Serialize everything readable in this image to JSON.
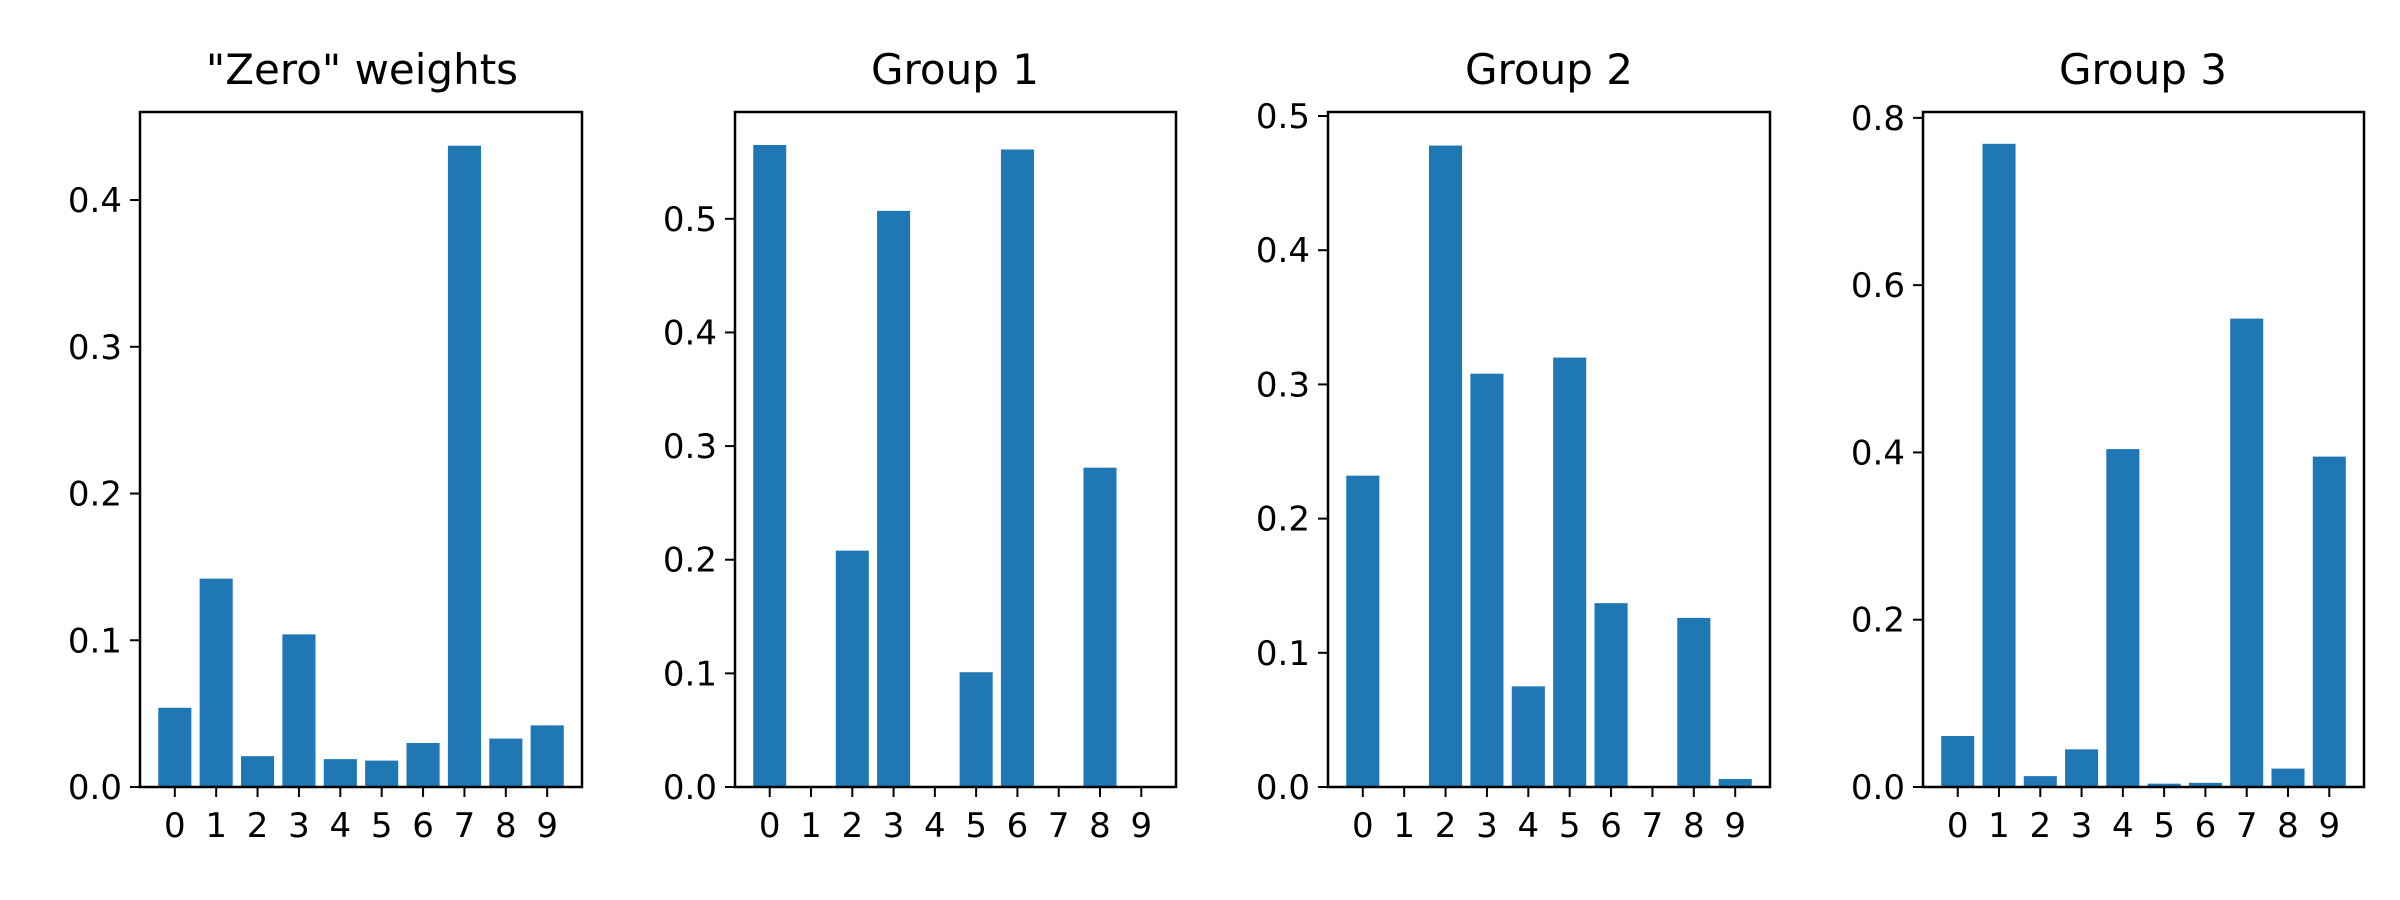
{
  "chart_data": [
    {
      "type": "bar",
      "title": "\"Zero\" weights",
      "categories": [
        "0",
        "1",
        "2",
        "3",
        "4",
        "5",
        "6",
        "7",
        "8",
        "9"
      ],
      "values": [
        0.054,
        0.142,
        0.021,
        0.104,
        0.019,
        0.018,
        0.03,
        0.437,
        0.033,
        0.042
      ],
      "ylim": [
        0,
        0.46
      ],
      "yticks": [
        0.0,
        0.1,
        0.2,
        0.3,
        0.4
      ],
      "ytick_labels": [
        "0.0",
        "0.1",
        "0.2",
        "0.3",
        "0.4"
      ],
      "xlabel": "",
      "ylabel": "",
      "color": "#1f77b4",
      "grid": false
    },
    {
      "type": "bar",
      "title": "Group 1",
      "categories": [
        "0",
        "1",
        "2",
        "3",
        "4",
        "5",
        "6",
        "7",
        "8",
        "9"
      ],
      "values": [
        0.565,
        0.0,
        0.208,
        0.507,
        0.0,
        0.101,
        0.561,
        0.0,
        0.281,
        0.0
      ],
      "ylim": [
        0,
        0.594
      ],
      "yticks": [
        0.0,
        0.1,
        0.2,
        0.3,
        0.4,
        0.5
      ],
      "ytick_labels": [
        "0.0",
        "0.1",
        "0.2",
        "0.3",
        "0.4",
        "0.5"
      ],
      "xlabel": "",
      "ylabel": "",
      "color": "#1f77b4",
      "grid": false
    },
    {
      "type": "bar",
      "title": "Group 2",
      "categories": [
        "0",
        "1",
        "2",
        "3",
        "4",
        "5",
        "6",
        "7",
        "8",
        "9"
      ],
      "values": [
        0.232,
        0.0,
        0.478,
        0.308,
        0.075,
        0.32,
        0.137,
        0.0,
        0.126,
        0.006
      ],
      "ylim": [
        0,
        0.503
      ],
      "yticks": [
        0.0,
        0.1,
        0.2,
        0.3,
        0.4,
        0.5
      ],
      "ytick_labels": [
        "0.0",
        "0.1",
        "0.2",
        "0.3",
        "0.4",
        "0.5"
      ],
      "xlabel": "",
      "ylabel": "",
      "color": "#1f77b4",
      "grid": false
    },
    {
      "type": "bar",
      "title": "Group 3",
      "categories": [
        "0",
        "1",
        "2",
        "3",
        "4",
        "5",
        "6",
        "7",
        "8",
        "9"
      ],
      "values": [
        0.061,
        0.769,
        0.013,
        0.045,
        0.404,
        0.004,
        0.005,
        0.56,
        0.022,
        0.395
      ],
      "ylim": [
        0,
        0.807
      ],
      "yticks": [
        0.0,
        0.2,
        0.4,
        0.6,
        0.8
      ],
      "ytick_labels": [
        "0.0",
        "0.2",
        "0.4",
        "0.6",
        "0.8"
      ],
      "xlabel": "",
      "ylabel": "",
      "color": "#1f77b4",
      "grid": false
    }
  ]
}
